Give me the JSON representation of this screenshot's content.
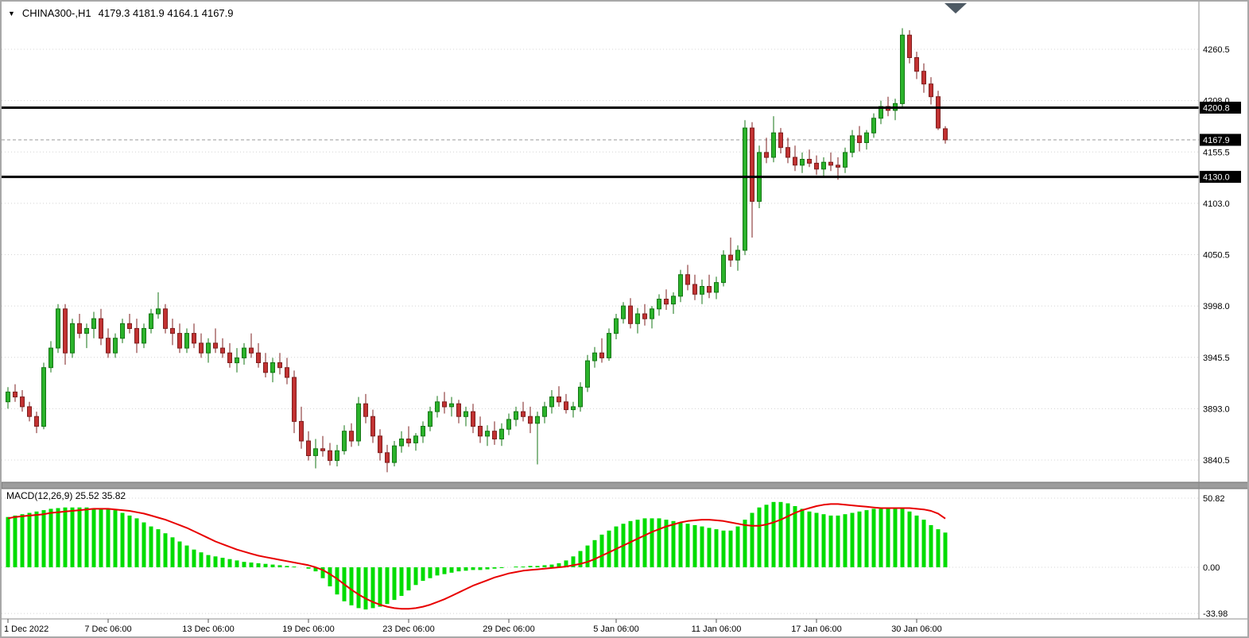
{
  "header": {
    "marker": "▼",
    "title": "CHINA300-,H1",
    "ohlc": "4179.3 4181.9 4164.1 4167.9"
  },
  "colors": {
    "up": "#2bb32b",
    "up_edge": "#147514",
    "down": "#c23232",
    "down_edge": "#7e1f1f",
    "hist": "#00dc00",
    "signal": "#e80000",
    "grid": "#d4d4d4",
    "hline": "#000000",
    "axis": "#8c8c8c",
    "text": "#000000"
  },
  "chart_data": {
    "type": "candlestick",
    "symbol": "CHINA300-",
    "timeframe": "H1",
    "last_bar": {
      "open": 4179.3,
      "high": 4181.9,
      "low": 4164.1,
      "close": 4167.9
    },
    "main": {
      "ylim": [
        3828,
        4285
      ],
      "grid": "on",
      "price_ticks": [
        "4260.5",
        "4208.0",
        "4155.5",
        "4103.0",
        "4050.5",
        "3998.0",
        "3945.5",
        "3893.0",
        "3840.5"
      ],
      "hlines": [
        {
          "price": 4200.8,
          "label": "4200.8"
        },
        {
          "price": 4130.0,
          "label": "4130.0"
        }
      ],
      "current_price": {
        "price": 4167.9,
        "label": "4167.9"
      },
      "candles": [
        [
          3900,
          3915,
          3893,
          3910
        ],
        [
          3910,
          3918,
          3900,
          3905
        ],
        [
          3905,
          3912,
          3890,
          3895
        ],
        [
          3895,
          3900,
          3880,
          3885
        ],
        [
          3885,
          3890,
          3868,
          3875
        ],
        [
          3875,
          3940,
          3872,
          3935
        ],
        [
          3935,
          3962,
          3930,
          3955
        ],
        [
          3955,
          4000,
          3950,
          3995
        ],
        [
          3995,
          4000,
          3938,
          3950
        ],
        [
          3950,
          3985,
          3945,
          3980
        ],
        [
          3980,
          3990,
          3965,
          3970
        ],
        [
          3970,
          3980,
          3955,
          3975
        ],
        [
          3975,
          3992,
          3965,
          3985
        ],
        [
          3985,
          3995,
          3958,
          3965
        ],
        [
          3965,
          3975,
          3945,
          3950
        ],
        [
          3950,
          3970,
          3945,
          3965
        ],
        [
          3965,
          3985,
          3960,
          3980
        ],
        [
          3980,
          3990,
          3970,
          3975
        ],
        [
          3975,
          3985,
          3950,
          3960
        ],
        [
          3960,
          3980,
          3955,
          3975
        ],
        [
          3975,
          3995,
          3970,
          3990
        ],
        [
          3990,
          4012,
          3985,
          3995
        ],
        [
          3995,
          4000,
          3970,
          3975
        ],
        [
          3975,
          3985,
          3958,
          3970
        ],
        [
          3970,
          3980,
          3950,
          3955
        ],
        [
          3955,
          3975,
          3950,
          3970
        ],
        [
          3970,
          3980,
          3955,
          3960
        ],
        [
          3960,
          3970,
          3945,
          3950
        ],
        [
          3950,
          3965,
          3940,
          3960
        ],
        [
          3960,
          3975,
          3950,
          3955
        ],
        [
          3955,
          3965,
          3945,
          3950
        ],
        [
          3950,
          3960,
          3935,
          3940
        ],
        [
          3940,
          3955,
          3930,
          3945
        ],
        [
          3945,
          3960,
          3938,
          3955
        ],
        [
          3955,
          3970,
          3945,
          3950
        ],
        [
          3950,
          3960,
          3935,
          3940
        ],
        [
          3940,
          3950,
          3925,
          3930
        ],
        [
          3930,
          3945,
          3920,
          3940
        ],
        [
          3940,
          3950,
          3928,
          3935
        ],
        [
          3935,
          3945,
          3918,
          3925
        ],
        [
          3925,
          3932,
          3868,
          3880
        ],
        [
          3880,
          3895,
          3852,
          3860
        ],
        [
          3860,
          3870,
          3840,
          3845
        ],
        [
          3845,
          3862,
          3832,
          3852
        ],
        [
          3852,
          3865,
          3844,
          3850
        ],
        [
          3850,
          3858,
          3835,
          3840
        ],
        [
          3840,
          3856,
          3834,
          3850
        ],
        [
          3850,
          3876,
          3846,
          3870
        ],
        [
          3870,
          3878,
          3854,
          3860
        ],
        [
          3860,
          3905,
          3855,
          3898
        ],
        [
          3898,
          3908,
          3878,
          3885
        ],
        [
          3885,
          3892,
          3858,
          3865
        ],
        [
          3865,
          3872,
          3840,
          3848
        ],
        [
          3848,
          3856,
          3828,
          3838
        ],
        [
          3838,
          3860,
          3834,
          3855
        ],
        [
          3855,
          3870,
          3848,
          3862
        ],
        [
          3862,
          3875,
          3854,
          3858
        ],
        [
          3858,
          3868,
          3850,
          3865
        ],
        [
          3865,
          3880,
          3858,
          3875
        ],
        [
          3875,
          3895,
          3870,
          3890
        ],
        [
          3890,
          3906,
          3884,
          3900
        ],
        [
          3900,
          3910,
          3888,
          3895
        ],
        [
          3895,
          3905,
          3885,
          3898
        ],
        [
          3898,
          3902,
          3878,
          3885
        ],
        [
          3885,
          3895,
          3875,
          3890
        ],
        [
          3890,
          3898,
          3868,
          3875
        ],
        [
          3875,
          3885,
          3858,
          3865
        ],
        [
          3865,
          3876,
          3855,
          3870
        ],
        [
          3870,
          3880,
          3856,
          3862
        ],
        [
          3862,
          3878,
          3855,
          3872
        ],
        [
          3872,
          3888,
          3866,
          3882
        ],
        [
          3882,
          3895,
          3875,
          3890
        ],
        [
          3890,
          3900,
          3880,
          3885
        ],
        [
          3885,
          3895,
          3868,
          3878
        ],
        [
          3878,
          3890,
          3836,
          3885
        ],
        [
          3885,
          3900,
          3878,
          3895
        ],
        [
          3895,
          3912,
          3888,
          3905
        ],
        [
          3905,
          3916,
          3895,
          3900
        ],
        [
          3900,
          3908,
          3888,
          3892
        ],
        [
          3892,
          3900,
          3884,
          3895
        ],
        [
          3895,
          3920,
          3890,
          3915
        ],
        [
          3915,
          3948,
          3910,
          3942
        ],
        [
          3942,
          3956,
          3935,
          3950
        ],
        [
          3950,
          3965,
          3940,
          3945
        ],
        [
          3945,
          3975,
          3942,
          3970
        ],
        [
          3970,
          3990,
          3964,
          3985
        ],
        [
          3985,
          4002,
          3980,
          3998
        ],
        [
          3998,
          4006,
          3975,
          3980
        ],
        [
          3980,
          3996,
          3970,
          3990
        ],
        [
          3990,
          4000,
          3978,
          3985
        ],
        [
          3985,
          3998,
          3975,
          3995
        ],
        [
          3995,
          4010,
          3988,
          4005
        ],
        [
          4005,
          4015,
          3994,
          4000
        ],
        [
          4000,
          4012,
          3990,
          4008
        ],
        [
          4008,
          4035,
          4002,
          4030
        ],
        [
          4030,
          4040,
          4014,
          4020
        ],
        [
          4020,
          4030,
          4004,
          4010
        ],
        [
          4010,
          4025,
          4000,
          4018
        ],
        [
          4018,
          4030,
          4006,
          4012
        ],
        [
          4012,
          4028,
          4005,
          4022
        ],
        [
          4022,
          4055,
          4018,
          4050
        ],
        [
          4050,
          4068,
          4038,
          4045
        ],
        [
          4045,
          4060,
          4034,
          4055
        ],
        [
          4055,
          4188,
          4050,
          4180
        ],
        [
          4180,
          4186,
          4068,
          4105
        ],
        [
          4105,
          4162,
          4098,
          4155
        ],
        [
          4155,
          4170,
          4144,
          4150
        ],
        [
          4150,
          4192,
          4145,
          4175
        ],
        [
          4175,
          4180,
          4154,
          4160
        ],
        [
          4160,
          4170,
          4144,
          4150
        ],
        [
          4150,
          4162,
          4136,
          4142
        ],
        [
          4142,
          4155,
          4134,
          4148
        ],
        [
          4148,
          4158,
          4140,
          4144
        ],
        [
          4144,
          4152,
          4132,
          4138
        ],
        [
          4138,
          4150,
          4129,
          4145
        ],
        [
          4145,
          4155,
          4136,
          4142
        ],
        [
          4142,
          4150,
          4127,
          4140
        ],
        [
          4140,
          4160,
          4134,
          4155
        ],
        [
          4155,
          4178,
          4150,
          4172
        ],
        [
          4172,
          4182,
          4156,
          4165
        ],
        [
          4165,
          4178,
          4158,
          4175
        ],
        [
          4175,
          4195,
          4170,
          4190
        ],
        [
          4190,
          4208,
          4184,
          4202
        ],
        [
          4202,
          4212,
          4192,
          4198
        ],
        [
          4198,
          4210,
          4188,
          4205
        ],
        [
          4205,
          4282,
          4200,
          4275
        ],
        [
          4275,
          4280,
          4246,
          4252
        ],
        [
          4252,
          4258,
          4230,
          4238
        ],
        [
          4238,
          4246,
          4216,
          4225
        ],
        [
          4225,
          4232,
          4204,
          4212
        ],
        [
          4212,
          4218,
          4178,
          4180
        ],
        [
          4179.3,
          4181.9,
          4164.1,
          4167.9
        ]
      ]
    },
    "macd": {
      "label": "MACD(12,26,9) 25.52 35.82",
      "params": "12,26,9",
      "macd_value": 25.52,
      "signal_value": 35.82,
      "ylim": [
        -40,
        55
      ],
      "ticks": [
        {
          "v": 50.82,
          "label": "50.82"
        },
        {
          "v": 0,
          "label": "0.00"
        },
        {
          "v": -33.98,
          "label": "-33.98"
        }
      ],
      "histogram": [
        37,
        38,
        39,
        40,
        41,
        42,
        43,
        43.5,
        44,
        44,
        44,
        44,
        43.5,
        43,
        43,
        42,
        40,
        38,
        36,
        33,
        30,
        28,
        25,
        22,
        19,
        16,
        13,
        11,
        9,
        8,
        7,
        6,
        5,
        4,
        3.5,
        3,
        2.5,
        2,
        1.5,
        1,
        0.5,
        0,
        -1,
        -3,
        -8,
        -14,
        -20,
        -25,
        -28,
        -30,
        -31,
        -30,
        -29,
        -27,
        -24,
        -21,
        -17,
        -13,
        -10,
        -8,
        -6,
        -5,
        -4,
        -3,
        -2.5,
        -2,
        -2,
        -1.5,
        -1,
        -0.5,
        0,
        0.5,
        0.5,
        1,
        1,
        1.5,
        2,
        3,
        5,
        8,
        12,
        16,
        20,
        24,
        27,
        30,
        32,
        34,
        35,
        36,
        36,
        36,
        35,
        34,
        33,
        32,
        31,
        30,
        29,
        28,
        27,
        27,
        30,
        35,
        40,
        44,
        46,
        48,
        48,
        47,
        45,
        43,
        41,
        40,
        39,
        38,
        38,
        39,
        40,
        41,
        42,
        43,
        43,
        44,
        44,
        43,
        41,
        38,
        35,
        31,
        28,
        25.5
      ],
      "signal": [
        36,
        37,
        37.5,
        38,
        38.5,
        39,
        40,
        40.5,
        41,
        41.5,
        42,
        42.5,
        43,
        43,
        43,
        42.5,
        42,
        41.5,
        40.5,
        39.5,
        38,
        36.5,
        35,
        33,
        31,
        29,
        26.5,
        24,
        21.5,
        19,
        17,
        15,
        13,
        11.5,
        10,
        8.5,
        7.5,
        6.5,
        5.5,
        4.5,
        3.5,
        2.5,
        1.5,
        0,
        -2,
        -5,
        -8.5,
        -12.5,
        -16.5,
        -20,
        -23,
        -25.5,
        -27.5,
        -29,
        -30,
        -30.5,
        -30.5,
        -30,
        -29,
        -27.5,
        -25.5,
        -23.5,
        -21,
        -18.5,
        -16,
        -13.5,
        -11.5,
        -9.5,
        -7.5,
        -6,
        -4.5,
        -3.5,
        -2.5,
        -2,
        -1.5,
        -1,
        -0.5,
        0,
        0.5,
        1.5,
        2.5,
        4,
        6,
        8.5,
        11,
        13.5,
        16,
        18.5,
        21,
        23.5,
        26,
        28,
        30,
        31.5,
        33,
        34,
        34.5,
        35,
        35,
        34.5,
        34,
        33,
        32,
        31,
        30.5,
        30.5,
        31.5,
        33,
        35,
        37.5,
        40,
        42,
        43.5,
        45,
        46,
        46.5,
        46.5,
        46,
        45.5,
        45,
        44.5,
        44,
        43.5,
        43.5,
        43.5,
        43.5,
        43.5,
        43,
        42.5,
        41.5,
        39.5,
        35.8
      ]
    },
    "time_ticks": [
      {
        "i": 0,
        "label": "1 Dec 2022"
      },
      {
        "i": 14,
        "label": "7 Dec 06:00"
      },
      {
        "i": 28,
        "label": "13 Dec 06:00"
      },
      {
        "i": 42,
        "label": "19 Dec 06:00"
      },
      {
        "i": 56,
        "label": "23 Dec 06:00"
      },
      {
        "i": 70,
        "label": "29 Dec 06:00"
      },
      {
        "i": 85,
        "label": "5 Jan 06:00"
      },
      {
        "i": 99,
        "label": "11 Jan 06:00"
      },
      {
        "i": 113,
        "label": "17 Jan 06:00"
      },
      {
        "i": 127,
        "label": "30 Jan 06:00"
      }
    ]
  }
}
